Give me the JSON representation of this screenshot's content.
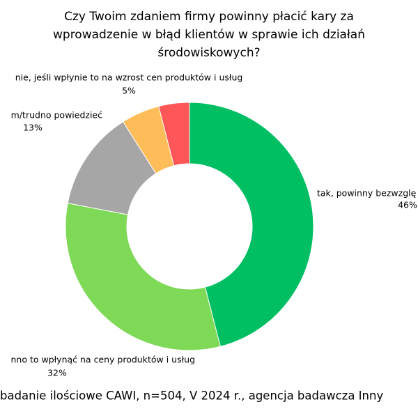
{
  "chart_data": {
    "type": "donut",
    "title": [
      "Czy Twoim zdaniem firmy powinny płacić kary za",
      "wprowadzenie w błąd klientów w sprawie ich działań",
      "środowiskowych?"
    ],
    "categories": [
      "tak, powinny bezwzglę",
      "nno to wpłynąć na ceny produktów i usług",
      "m/trudno powiedzieć",
      "nie, jeśli wpłynie to na wzrost cen produktów i usług",
      null
    ],
    "values": [
      46,
      32,
      13,
      5,
      4
    ],
    "value_labels": [
      "46%",
      "32%",
      "13%",
      "5%",
      null
    ],
    "colors": [
      "#00bf63",
      "#7ed957",
      "#a6a6a6",
      "#ffbd59",
      "#ff5757"
    ],
    "footer": "badanie ilościowe CAWI, n=504, V 2024 r., agencja badawcza Inny"
  }
}
